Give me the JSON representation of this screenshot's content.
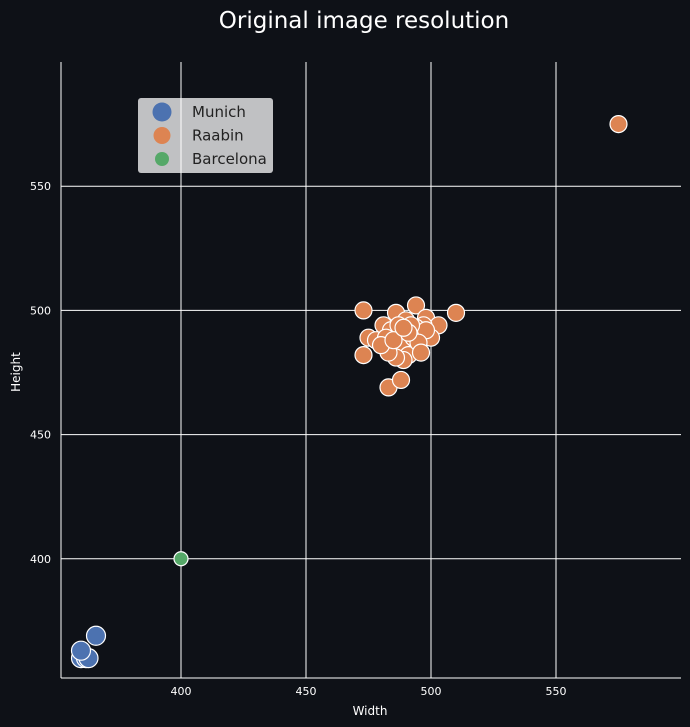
{
  "chart_data": {
    "type": "scatter",
    "title": "Original image resolution",
    "xlabel": "Width",
    "ylabel": "Height",
    "xlim": [
      352,
      600
    ],
    "ylim": [
      352,
      600
    ],
    "xticks": [
      400,
      450,
      500,
      550
    ],
    "yticks": [
      400,
      450,
      500,
      550
    ],
    "grid": true,
    "legend": "top-left",
    "series": [
      {
        "name": "Munich",
        "color": "#4c72b0",
        "size": "large",
        "points": [
          [
            360,
            360
          ],
          [
            362,
            360
          ],
          [
            363,
            360
          ],
          [
            366,
            369
          ],
          [
            360,
            363
          ]
        ]
      },
      {
        "name": "Raabin",
        "color": "#dd8452",
        "size": "medium",
        "points": [
          [
            575,
            575
          ],
          [
            473,
            500
          ],
          [
            486,
            499
          ],
          [
            494,
            502
          ],
          [
            510,
            499
          ],
          [
            498,
            497
          ],
          [
            503,
            494
          ],
          [
            475,
            489
          ],
          [
            473,
            482
          ],
          [
            483,
            469
          ],
          [
            488,
            472
          ],
          [
            481,
            494
          ],
          [
            490,
            496
          ],
          [
            478,
            488
          ],
          [
            484,
            486
          ],
          [
            486,
            483
          ],
          [
            490,
            485
          ],
          [
            492,
            488
          ],
          [
            494,
            484
          ],
          [
            496,
            490
          ],
          [
            500,
            489
          ],
          [
            497,
            494
          ],
          [
            494,
            493
          ],
          [
            488,
            490
          ],
          [
            484,
            492
          ],
          [
            482,
            489
          ],
          [
            488,
            486
          ],
          [
            491,
            482
          ],
          [
            489,
            480
          ],
          [
            486,
            481
          ],
          [
            493,
            489
          ],
          [
            498,
            492
          ],
          [
            495,
            487
          ],
          [
            483,
            483
          ],
          [
            480,
            486
          ],
          [
            487,
            494
          ],
          [
            492,
            494
          ],
          [
            496,
            483
          ],
          [
            491,
            491
          ],
          [
            485,
            488
          ],
          [
            489,
            493
          ]
        ]
      },
      {
        "name": "Barcelona",
        "color": "#55a868",
        "size": "small",
        "points": [
          [
            400,
            400
          ]
        ]
      }
    ]
  }
}
